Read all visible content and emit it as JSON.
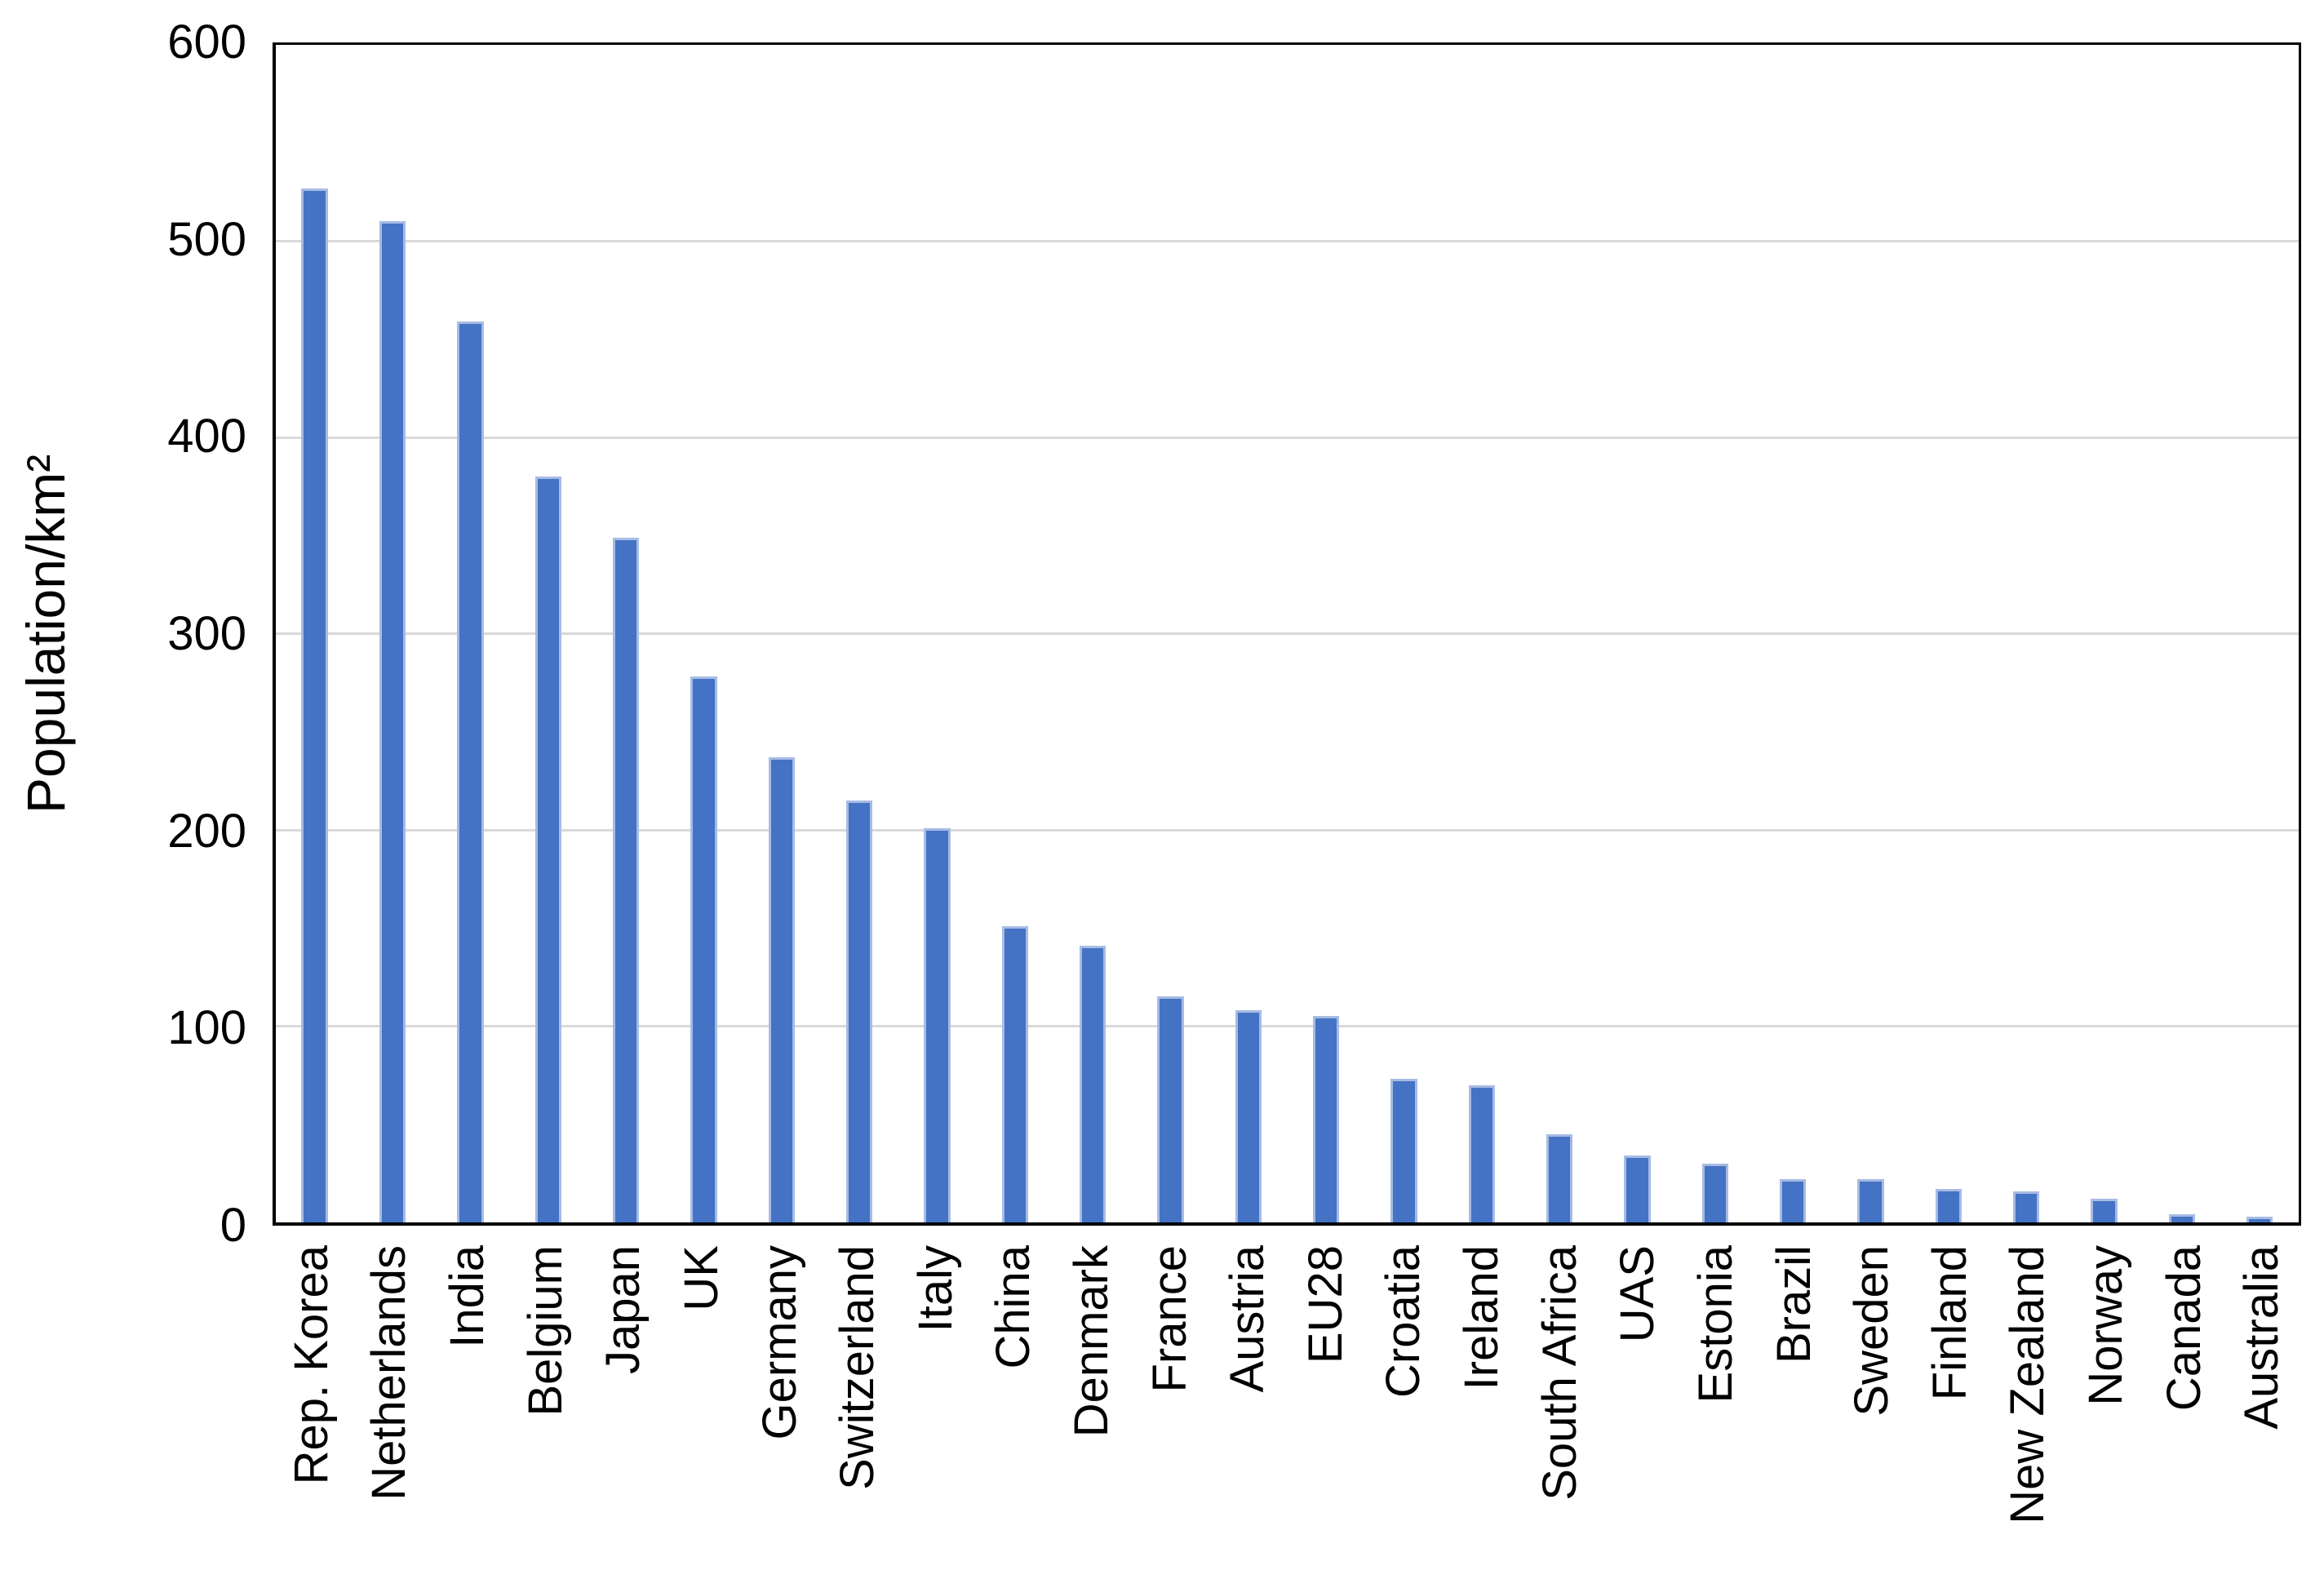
{
  "chart_data": {
    "type": "bar",
    "title": "",
    "xlabel": "",
    "ylabel": "Population/km²",
    "categories": [
      "Rep. Korea",
      "Netherlands",
      "India",
      "Belgium",
      "Japan",
      "UK",
      "Germany",
      "Switzerland",
      "Italy",
      "China",
      "Denmark",
      "France",
      "Austria",
      "EU28",
      "Croatia",
      "Ireland",
      "South Africa",
      "UAS",
      "Estonia",
      "Brazil",
      "Sweden",
      "Finland",
      "New Zealand",
      "Norway",
      "Canada",
      "Australia"
    ],
    "values": [
      527,
      510,
      459,
      380,
      349,
      278,
      237,
      215,
      201,
      151,
      141,
      115,
      108,
      105,
      73,
      70,
      45,
      34,
      30,
      22,
      22,
      17,
      16,
      12,
      4,
      3
    ],
    "ylim": [
      0,
      600
    ],
    "yticks": [
      0,
      100,
      200,
      300,
      400,
      500,
      600
    ],
    "grid": "horizontal",
    "legend": "none",
    "colors": {
      "bar_fill": "#4472C4",
      "bar_edge": "#A7BBE3",
      "gridline": "#D9D9D9",
      "axis_border": "#000000",
      "text": "#000000",
      "background": "#ffffff"
    }
  }
}
